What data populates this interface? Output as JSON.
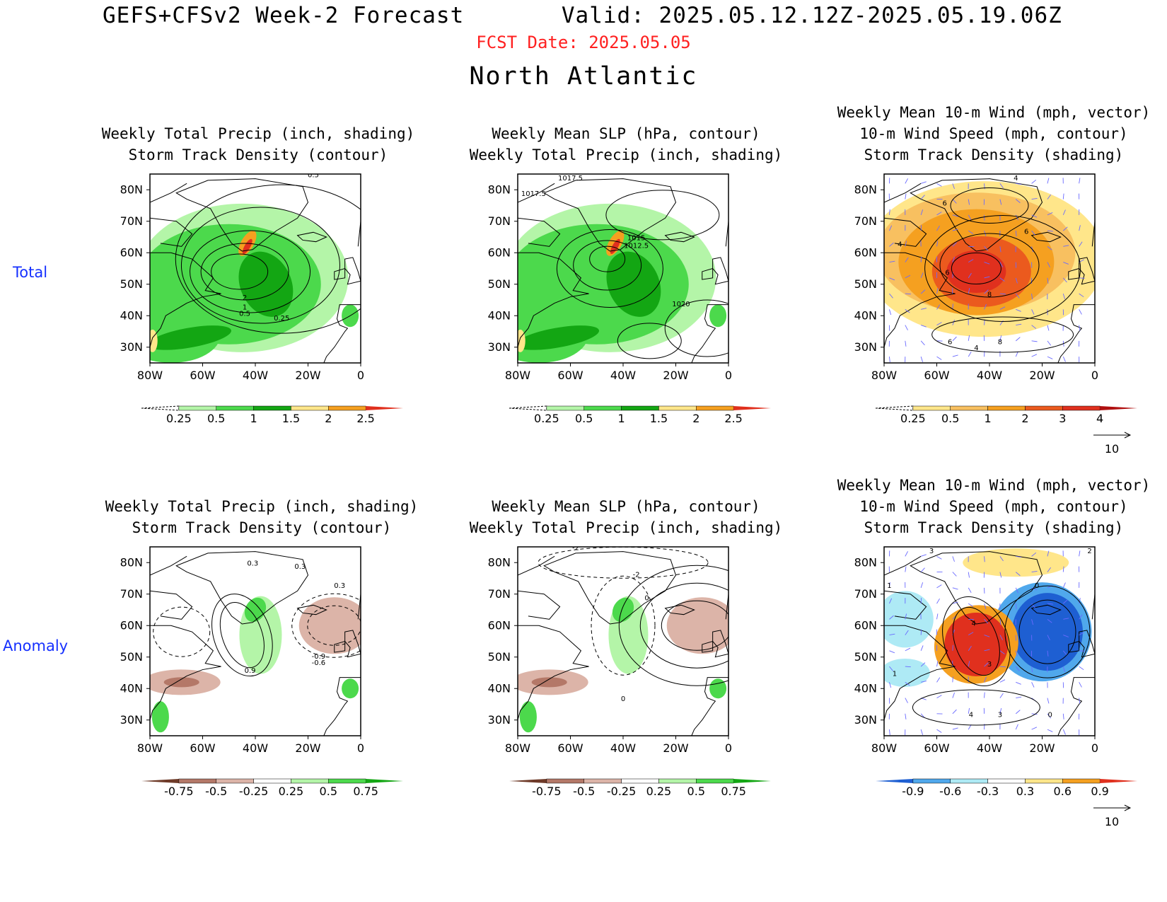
{
  "header": {
    "title": "GEFS+CFSv2 Week-2 Forecast       Valid: 2025.05.12.12Z-2025.05.19.06Z",
    "fcst_date": "FCST Date: 2025.05.05",
    "region": "North Atlantic"
  },
  "rows": {
    "total": "Total",
    "anomaly": "Anomaly"
  },
  "colors": {
    "land_green_light": "#b4f5a8",
    "land_green_mid": "#4cd94c",
    "land_green_dark": "#13a613",
    "yellow": "#ffe68a",
    "orange": "#f5a020",
    "red": "#e0301e",
    "brown_light": "#dcb4a8",
    "brown_mid": "#b47868",
    "blue_light": "#aeeaf5",
    "blue_mid": "#50a8ec",
    "blue_dark": "#1e5fd2",
    "vector": "#6a6aff"
  },
  "axes": {
    "lat_labels": [
      "80N",
      "70N",
      "60N",
      "50N",
      "40N",
      "30N"
    ],
    "lon_labels": [
      "80W",
      "60W",
      "40W",
      "20W",
      "0"
    ]
  },
  "panels": {
    "p1": {
      "title": "Weekly Total Precip (inch, shading)\nStorm Track Density (contour)",
      "colorbar": [
        "0.25",
        "0.5",
        "1",
        "1.5",
        "2",
        "2.5"
      ],
      "contour_labels": [
        "0.5",
        "2",
        "1",
        "0.5",
        "0.25"
      ]
    },
    "p2": {
      "title": "Weekly Mean SLP (hPa, contour)\nWeekly Total Precip (inch, shading)",
      "colorbar": [
        "0.25",
        "0.5",
        "1",
        "1.5",
        "2",
        "2.5"
      ],
      "contour_labels": [
        "1017.5",
        "1017.5",
        "1015",
        "1012.5",
        "1020"
      ]
    },
    "p3": {
      "title": "Weekly Mean 10-m Wind (mph, vector)\n10-m Wind Speed (mph, contour)\nStorm Track Density (shading)",
      "colorbar": [
        "0.25",
        "0.5",
        "1",
        "2",
        "3",
        "4"
      ],
      "vector_ref": "10",
      "contour_labels": [
        "4",
        "6",
        "6",
        "6",
        "8",
        "4",
        "6",
        "8",
        "4"
      ]
    },
    "p4": {
      "title": "Weekly Total Precip (inch, shading)\nStorm Track Density (contour)",
      "colorbar": [
        "-0.75",
        "-0.5",
        "-0.25",
        "0.25",
        "0.5",
        "0.75"
      ],
      "contour_labels": [
        "0.3",
        "0.3",
        "0.3",
        "-0.9",
        "-0.6",
        "0.9"
      ]
    },
    "p5": {
      "title": "Weekly Mean SLP (hPa, contour)\nWeekly Total Precip (inch, shading)",
      "colorbar": [
        "-0.75",
        "-0.5",
        "-0.25",
        "0.25",
        "0.5",
        "0.75"
      ],
      "contour_labels": [
        "-2",
        "-2",
        "0",
        "0"
      ]
    },
    "p6": {
      "title": "Weekly Mean 10-m Wind (mph, vector)\n10-m Wind Speed (mph, contour)\nStorm Track Density (shading)",
      "colorbar": [
        "-0.9",
        "-0.6",
        "-0.3",
        "0.3",
        "0.6",
        "0.9"
      ],
      "vector_ref": "10",
      "contour_labels": [
        "3",
        "2",
        "1",
        "0",
        "4",
        "3",
        "1",
        "3",
        "4",
        "0"
      ]
    }
  }
}
